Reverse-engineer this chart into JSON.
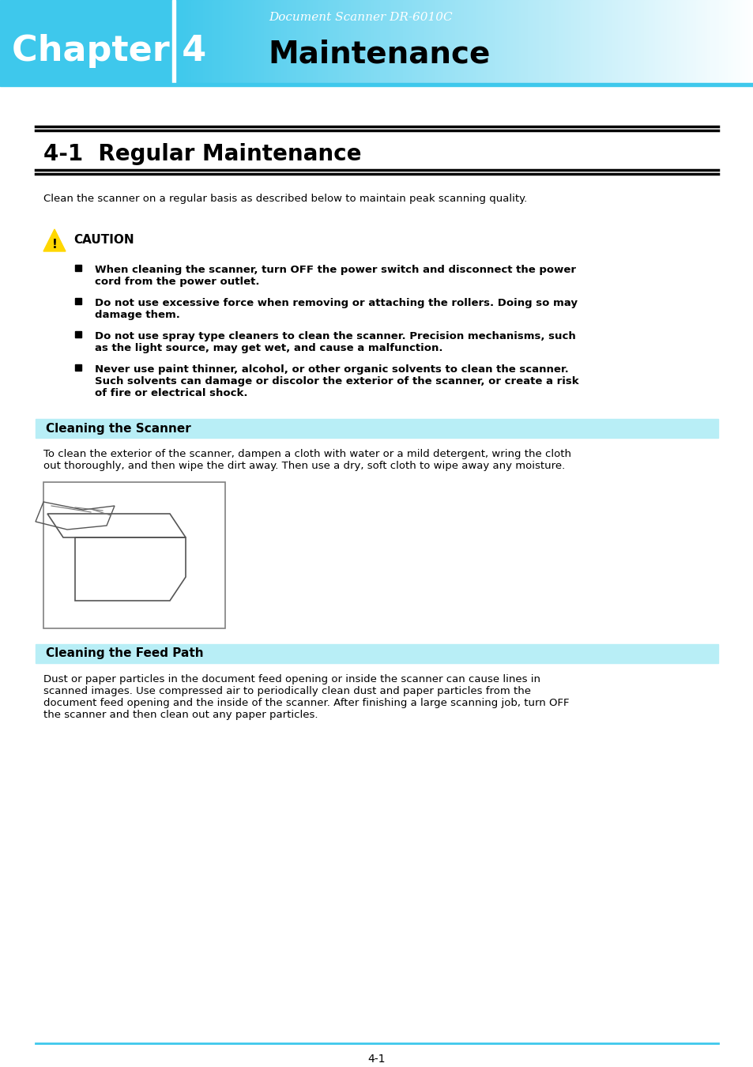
{
  "header_bg_color": "#3EC8EC",
  "header_gradient_right": "#CCEEFF",
  "chapter_text": "Chapter 4",
  "chapter_font_color": "#FFFFFF",
  "doc_subtitle": "Document Scanner DR-6010C",
  "doc_subtitle_color": "#FFFFFF",
  "main_title": "Maintenance",
  "main_title_color": "#000000",
  "section_title": "4-1  Regular Maintenance",
  "section_title_color": "#000000",
  "section_bar_color": "#B8EEF6",
  "subsection1_title": "Cleaning the Scanner",
  "subsection2_title": "Cleaning the Feed Path",
  "subsection_title_color": "#000000",
  "intro_text": "Clean the scanner on a regular basis as described below to maintain peak scanning quality.",
  "caution_title": "CAUTION",
  "caution_bullets": [
    "When cleaning the scanner, turn OFF the power switch and disconnect the power\ncord from the power outlet.",
    "Do not use excessive force when removing or attaching the rollers. Doing so may\ndamage them.",
    "Do not use spray type cleaners to clean the scanner. Precision mechanisms, such\nas the light source, may get wet, and cause a malfunction.",
    "Never use paint thinner, alcohol, or other organic solvents to clean the scanner.\nSuch solvents can damage or discolor the exterior of the scanner, or create a risk\nof fire or electrical shock."
  ],
  "cleaning_scanner_text": "To clean the exterior of the scanner, dampen a cloth with water or a mild detergent, wring the cloth\nout thoroughly, and then wipe the dirt away. Then use a dry, soft cloth to wipe away any moisture.",
  "cleaning_feedpath_text": "Dust or paper particles in the document feed opening or inside the scanner can cause lines in\nscanned images. Use compressed air to periodically clean dust and paper particles from the\ndocument feed opening and the inside of the scanner. After finishing a large scanning job, turn OFF\nthe scanner and then clean out any paper particles.",
  "footer_text": "4-1",
  "footer_line_color": "#3EC8EC",
  "page_bg": "#FFFFFF",
  "body_text_color": "#000000",
  "body_font_size": 9.5,
  "caution_font_size": 9.5
}
